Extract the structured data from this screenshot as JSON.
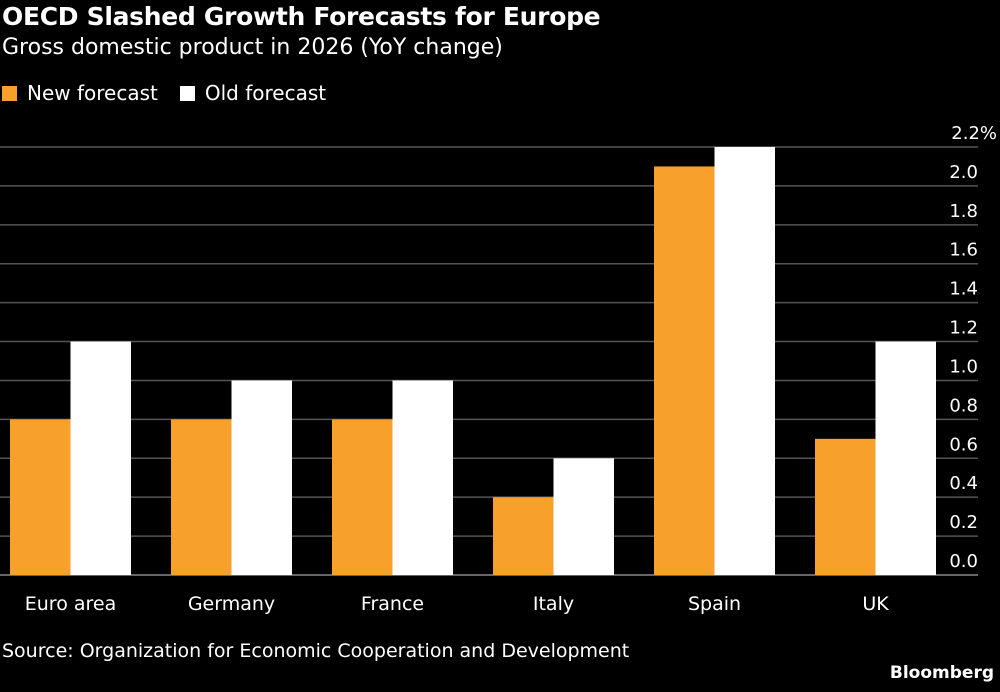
{
  "chart_data": {
    "type": "bar",
    "title": "OECD Slashed Growth Forecasts for Europe",
    "subtitle": "Gross domestic product in 2026 (YoY change)",
    "categories": [
      "Euro area",
      "Germany",
      "France",
      "Italy",
      "Spain",
      "UK"
    ],
    "series": [
      {
        "name": "New forecast",
        "color": "#f7a02c",
        "values": [
          0.8,
          0.8,
          0.8,
          0.4,
          2.1,
          0.7
        ]
      },
      {
        "name": "Old forecast",
        "color": "#ffffff",
        "values": [
          1.2,
          1.0,
          1.0,
          0.6,
          2.2,
          1.2
        ]
      }
    ],
    "ylim": [
      0,
      2.2
    ],
    "yticks": [
      "0.0",
      "0.2",
      "0.4",
      "0.6",
      "0.8",
      "1.0",
      "1.2",
      "1.4",
      "1.6",
      "1.8",
      "2.0",
      "2.2%"
    ],
    "grid": true,
    "legend": "top-left",
    "y_axis_side": "right",
    "source": "Source: Organization for Economic Cooperation and Development",
    "brand": "Bloomberg"
  }
}
